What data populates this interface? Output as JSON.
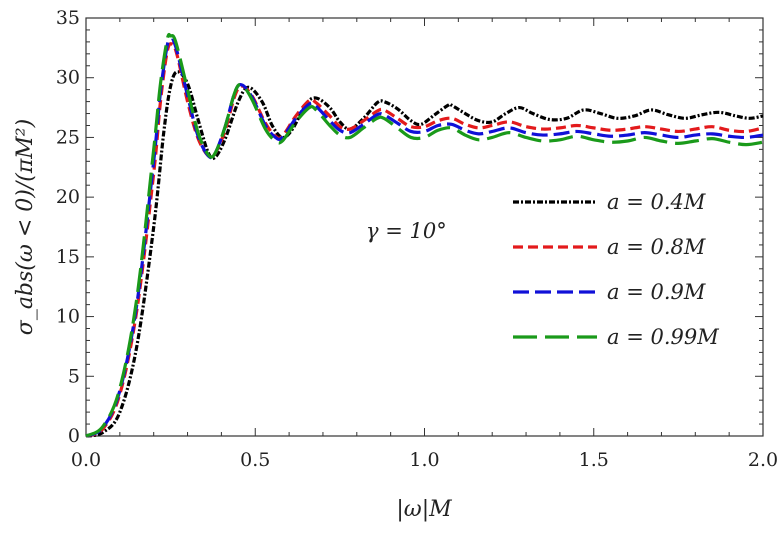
{
  "chart_data": {
    "type": "line",
    "title": "",
    "xlabel": "|ω|M",
    "ylabel": "σ_abs(ω < 0)/(πM²)",
    "xlim": [
      0,
      2
    ],
    "ylim": [
      0,
      35
    ],
    "x_ticks": [
      0,
      0.5,
      1.0,
      1.5,
      2.0
    ],
    "x_tick_labels": [
      "0.0",
      "0.5",
      "1.0",
      "1.5",
      "2.0"
    ],
    "y_ticks": [
      0,
      5,
      10,
      15,
      20,
      25,
      30,
      35
    ],
    "y_tick_labels": [
      "0",
      "5",
      "10",
      "15",
      "20",
      "25",
      "30",
      "35"
    ],
    "annotation": "γ = 10°",
    "legend_position": "right",
    "grid": false,
    "series": [
      {
        "name": "a = 0.4M",
        "color": "#000000",
        "dash": "dashdot",
        "points": [
          [
            0,
            0
          ],
          [
            0.05,
            0.3
          ],
          [
            0.1,
            2
          ],
          [
            0.15,
            7.5
          ],
          [
            0.2,
            17.5
          ],
          [
            0.23,
            25.5
          ],
          [
            0.25,
            29.3
          ],
          [
            0.27,
            30.5
          ],
          [
            0.3,
            29.5
          ],
          [
            0.33,
            26.6
          ],
          [
            0.36,
            23.8
          ],
          [
            0.38,
            23.3
          ],
          [
            0.41,
            24.8
          ],
          [
            0.45,
            28
          ],
          [
            0.48,
            29.2
          ],
          [
            0.52,
            28
          ],
          [
            0.55,
            26
          ],
          [
            0.58,
            25
          ],
          [
            0.61,
            25.7
          ],
          [
            0.65,
            27.8
          ],
          [
            0.68,
            28.3
          ],
          [
            0.72,
            27.5
          ],
          [
            0.75,
            26.3
          ],
          [
            0.78,
            25.7
          ],
          [
            0.82,
            26.6
          ],
          [
            0.86,
            27.9
          ],
          [
            0.88,
            28.0
          ],
          [
            0.92,
            27.4
          ],
          [
            0.96,
            26.4
          ],
          [
            0.99,
            26.1
          ],
          [
            1.03,
            26.9
          ],
          [
            1.07,
            27.7
          ],
          [
            1.08,
            27.7
          ],
          [
            1.12,
            27.0
          ],
          [
            1.16,
            26.4
          ],
          [
            1.2,
            26.3
          ],
          [
            1.24,
            27.0
          ],
          [
            1.28,
            27.5
          ],
          [
            1.32,
            27.0
          ],
          [
            1.37,
            26.5
          ],
          [
            1.42,
            26.6
          ],
          [
            1.47,
            27.3
          ],
          [
            1.52,
            27.0
          ],
          [
            1.57,
            26.6
          ],
          [
            1.62,
            26.8
          ],
          [
            1.67,
            27.3
          ],
          [
            1.72,
            26.9
          ],
          [
            1.77,
            26.6
          ],
          [
            1.82,
            26.9
          ],
          [
            1.87,
            27.1
          ],
          [
            1.92,
            26.8
          ],
          [
            1.96,
            26.6
          ],
          [
            2.0,
            26.8
          ]
        ]
      },
      {
        "name": "a = 0.8M",
        "color": "#e31a1c",
        "dash": "dashed",
        "points": [
          [
            0,
            0
          ],
          [
            0.05,
            0.6
          ],
          [
            0.1,
            3.5
          ],
          [
            0.15,
            10.5
          ],
          [
            0.2,
            22
          ],
          [
            0.22,
            28
          ],
          [
            0.24,
            32.2
          ],
          [
            0.255,
            32.8
          ],
          [
            0.27,
            31.8
          ],
          [
            0.3,
            28
          ],
          [
            0.33,
            25
          ],
          [
            0.36,
            23.5
          ],
          [
            0.38,
            23.6
          ],
          [
            0.41,
            25.5
          ],
          [
            0.44,
            28.5
          ],
          [
            0.46,
            29.3
          ],
          [
            0.49,
            28.5
          ],
          [
            0.53,
            26.2
          ],
          [
            0.56,
            25.1
          ],
          [
            0.58,
            25.1
          ],
          [
            0.62,
            26.8
          ],
          [
            0.66,
            28.1
          ],
          [
            0.68,
            27.9
          ],
          [
            0.72,
            26.8
          ],
          [
            0.75,
            25.9
          ],
          [
            0.78,
            25.7
          ],
          [
            0.82,
            26.4
          ],
          [
            0.86,
            27.2
          ],
          [
            0.88,
            27.3
          ],
          [
            0.92,
            26.6
          ],
          [
            0.96,
            25.9
          ],
          [
            1.0,
            25.9
          ],
          [
            1.04,
            26.4
          ],
          [
            1.08,
            26.6
          ],
          [
            1.12,
            26.1
          ],
          [
            1.16,
            25.8
          ],
          [
            1.2,
            26.0
          ],
          [
            1.25,
            26.3
          ],
          [
            1.3,
            25.9
          ],
          [
            1.35,
            25.7
          ],
          [
            1.4,
            25.8
          ],
          [
            1.45,
            26.0
          ],
          [
            1.5,
            25.8
          ],
          [
            1.55,
            25.6
          ],
          [
            1.6,
            25.7
          ],
          [
            1.65,
            25.9
          ],
          [
            1.7,
            25.7
          ],
          [
            1.75,
            25.5
          ],
          [
            1.8,
            25.7
          ],
          [
            1.85,
            25.9
          ],
          [
            1.9,
            25.6
          ],
          [
            1.95,
            25.5
          ],
          [
            2.0,
            25.8
          ]
        ]
      },
      {
        "name": "a = 0.9M",
        "color": "#1010d8",
        "dash": "longdash",
        "points": [
          [
            0,
            0
          ],
          [
            0.05,
            0.7
          ],
          [
            0.1,
            3.8
          ],
          [
            0.15,
            11
          ],
          [
            0.2,
            23
          ],
          [
            0.22,
            28.8
          ],
          [
            0.24,
            32.7
          ],
          [
            0.25,
            33.1
          ],
          [
            0.265,
            32.6
          ],
          [
            0.3,
            28.5
          ],
          [
            0.33,
            25.2
          ],
          [
            0.36,
            23.5
          ],
          [
            0.38,
            23.6
          ],
          [
            0.41,
            25.8
          ],
          [
            0.44,
            28.8
          ],
          [
            0.46,
            29.4
          ],
          [
            0.49,
            28.4
          ],
          [
            0.53,
            26.0
          ],
          [
            0.56,
            25.0
          ],
          [
            0.58,
            25.0
          ],
          [
            0.62,
            26.6
          ],
          [
            0.66,
            27.8
          ],
          [
            0.68,
            27.6
          ],
          [
            0.72,
            26.4
          ],
          [
            0.75,
            25.6
          ],
          [
            0.78,
            25.4
          ],
          [
            0.82,
            26.1
          ],
          [
            0.86,
            26.9
          ],
          [
            0.88,
            26.9
          ],
          [
            0.92,
            26.2
          ],
          [
            0.96,
            25.5
          ],
          [
            1.0,
            25.5
          ],
          [
            1.04,
            26.0
          ],
          [
            1.08,
            26.1
          ],
          [
            1.12,
            25.6
          ],
          [
            1.16,
            25.3
          ],
          [
            1.2,
            25.5
          ],
          [
            1.25,
            25.8
          ],
          [
            1.3,
            25.4
          ],
          [
            1.35,
            25.2
          ],
          [
            1.4,
            25.3
          ],
          [
            1.45,
            25.5
          ],
          [
            1.5,
            25.3
          ],
          [
            1.55,
            25.1
          ],
          [
            1.6,
            25.2
          ],
          [
            1.65,
            25.4
          ],
          [
            1.7,
            25.2
          ],
          [
            1.75,
            25.0
          ],
          [
            1.8,
            25.2
          ],
          [
            1.85,
            25.3
          ],
          [
            1.9,
            25.1
          ],
          [
            1.95,
            25.0
          ],
          [
            2.0,
            25.2
          ]
        ]
      },
      {
        "name": "a = 0.99M",
        "color": "#1a9a1a",
        "dash": "verylongdash",
        "points": [
          [
            0,
            0
          ],
          [
            0.05,
            0.8
          ],
          [
            0.1,
            4
          ],
          [
            0.15,
            11.5
          ],
          [
            0.2,
            24
          ],
          [
            0.22,
            29.5
          ],
          [
            0.24,
            33.2
          ],
          [
            0.25,
            33.5
          ],
          [
            0.265,
            33.0
          ],
          [
            0.3,
            29
          ],
          [
            0.33,
            25.5
          ],
          [
            0.36,
            23.6
          ],
          [
            0.38,
            23.6
          ],
          [
            0.41,
            25.8
          ],
          [
            0.44,
            28.8
          ],
          [
            0.46,
            29.4
          ],
          [
            0.49,
            28.2
          ],
          [
            0.53,
            25.7
          ],
          [
            0.56,
            24.7
          ],
          [
            0.58,
            24.7
          ],
          [
            0.62,
            26.3
          ],
          [
            0.66,
            27.5
          ],
          [
            0.68,
            27.3
          ],
          [
            0.72,
            26.0
          ],
          [
            0.75,
            25.2
          ],
          [
            0.78,
            25.0
          ],
          [
            0.82,
            25.8
          ],
          [
            0.86,
            26.6
          ],
          [
            0.88,
            26.6
          ],
          [
            0.92,
            25.8
          ],
          [
            0.96,
            25.0
          ],
          [
            1.0,
            25.0
          ],
          [
            1.04,
            25.6
          ],
          [
            1.08,
            25.8
          ],
          [
            1.12,
            25.2
          ],
          [
            1.16,
            24.8
          ],
          [
            1.2,
            25.0
          ],
          [
            1.25,
            25.4
          ],
          [
            1.3,
            25.0
          ],
          [
            1.35,
            24.7
          ],
          [
            1.4,
            24.8
          ],
          [
            1.45,
            25.1
          ],
          [
            1.5,
            24.8
          ],
          [
            1.55,
            24.6
          ],
          [
            1.6,
            24.7
          ],
          [
            1.65,
            25.0
          ],
          [
            1.7,
            24.7
          ],
          [
            1.75,
            24.5
          ],
          [
            1.8,
            24.7
          ],
          [
            1.85,
            24.9
          ],
          [
            1.9,
            24.6
          ],
          [
            1.95,
            24.4
          ],
          [
            2.0,
            24.6
          ]
        ]
      }
    ]
  }
}
